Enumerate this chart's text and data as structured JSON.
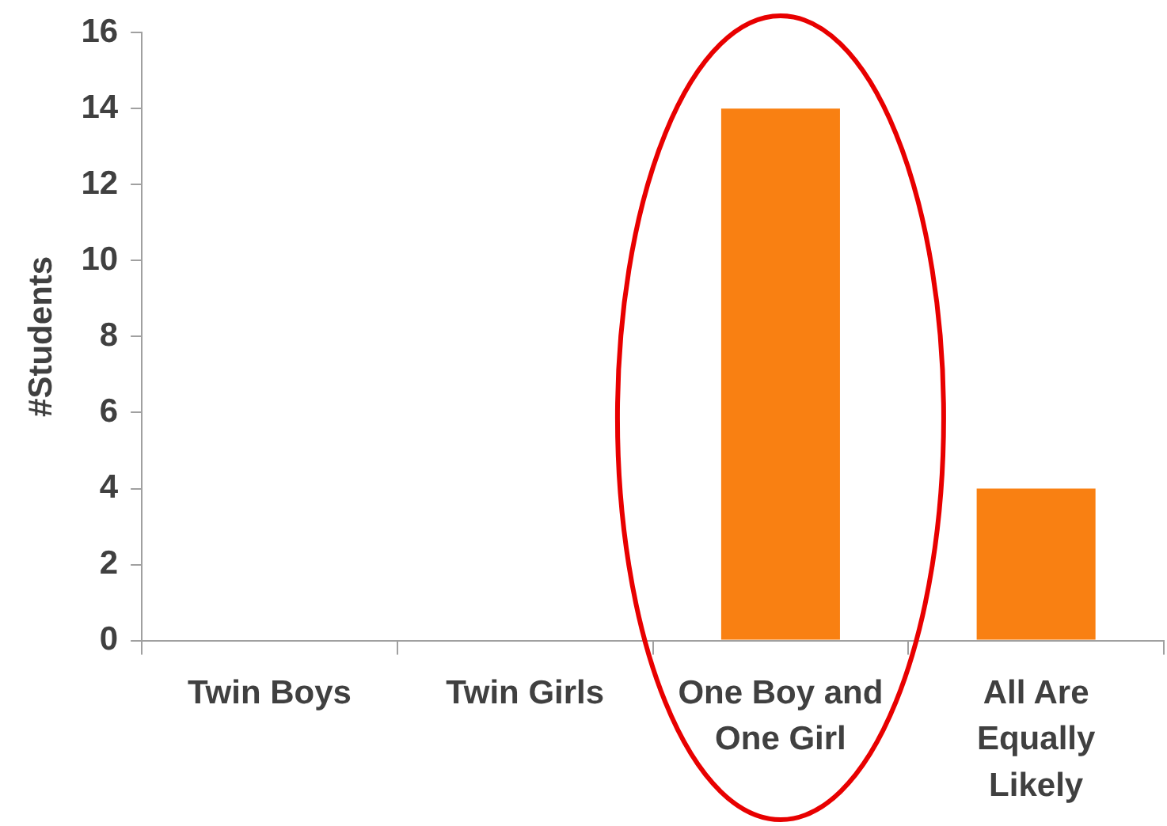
{
  "chart_data": {
    "type": "bar",
    "ylabel": "#Students",
    "categories": [
      "Twin Boys",
      "Twin Girls",
      "One Boy and One Girl",
      "All Are Equally Likely"
    ],
    "values": [
      0,
      0,
      14,
      4
    ],
    "color": "#f98012",
    "ylim": [
      0,
      16
    ],
    "yticks": [
      0,
      2,
      4,
      6,
      8,
      10,
      12,
      14,
      16
    ],
    "grid": false,
    "legend": false
  }
}
